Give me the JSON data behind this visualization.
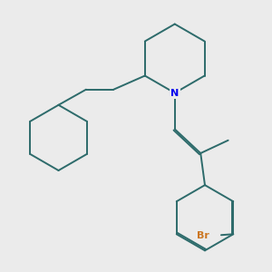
{
  "bg_color": "#ebebeb",
  "bond_color": "#2d6b6b",
  "n_color": "#0000ee",
  "br_color": "#cc7722",
  "lw": 1.4,
  "dbo": 0.018
}
